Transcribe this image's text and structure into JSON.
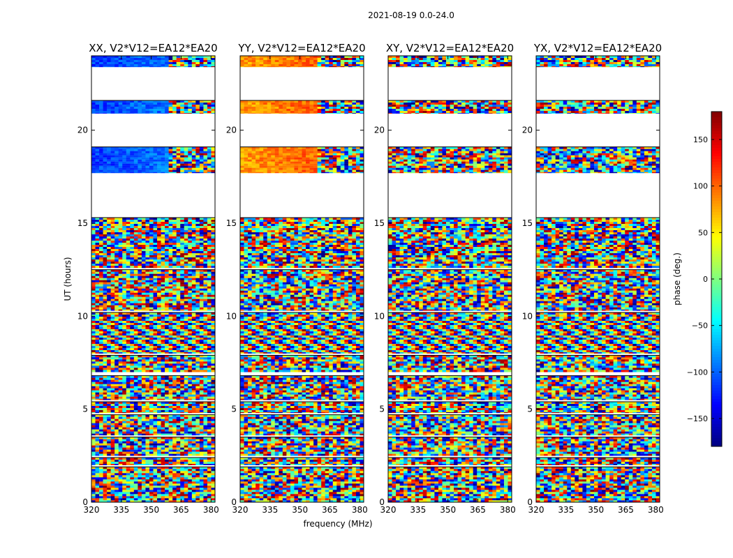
{
  "figure": {
    "suptitle": "2021-08-19 0.0-24.0",
    "xlabel": "frequency (MHz)",
    "ylabel": "UT (hours)",
    "colorbar_label": "phase (deg.)"
  },
  "chart_data": {
    "type": "heatmap",
    "title": "2021-08-19 0.0-24.0",
    "xlabel": "frequency (MHz)",
    "ylabel": "UT (hours)",
    "xlim": [
      320,
      382
    ],
    "ylim": [
      0,
      24
    ],
    "xticks": [
      320,
      335,
      350,
      365,
      380
    ],
    "yticks": [
      0,
      5,
      10,
      15,
      20
    ],
    "colorbar": {
      "label": "phase (deg.)",
      "range": [
        -180,
        180
      ],
      "ticks": [
        150,
        100,
        50,
        0,
        -50,
        -100,
        -150
      ],
      "colormap": "jet"
    },
    "panels": [
      {
        "title": "XX, V2*V12=EA12*EA20",
        "pol": "XX"
      },
      {
        "title": "YY, V2*V12=EA12*EA20",
        "pol": "YY"
      },
      {
        "title": "XY, V2*V12=EA12*EA20",
        "pol": "XY"
      },
      {
        "title": "YX, V2*V12=EA12*EA20",
        "pol": "YX"
      }
    ],
    "data_blocks_ut": [
      [
        0.0,
        1.9
      ],
      [
        2.0,
        2.4
      ],
      [
        2.5,
        3.5
      ],
      [
        3.6,
        4.7
      ],
      [
        4.8,
        5.4
      ],
      [
        5.5,
        6.8
      ],
      [
        7.0,
        7.9
      ],
      [
        8.0,
        10.2
      ],
      [
        10.3,
        12.5
      ],
      [
        12.6,
        15.3
      ],
      [
        17.7,
        19.1
      ],
      [
        20.9,
        21.6
      ],
      [
        23.4,
        24.0
      ]
    ],
    "gaps_ut": [
      [
        15.3,
        17.7
      ],
      [
        19.1,
        20.9
      ],
      [
        21.6,
        23.4
      ]
    ]
  }
}
